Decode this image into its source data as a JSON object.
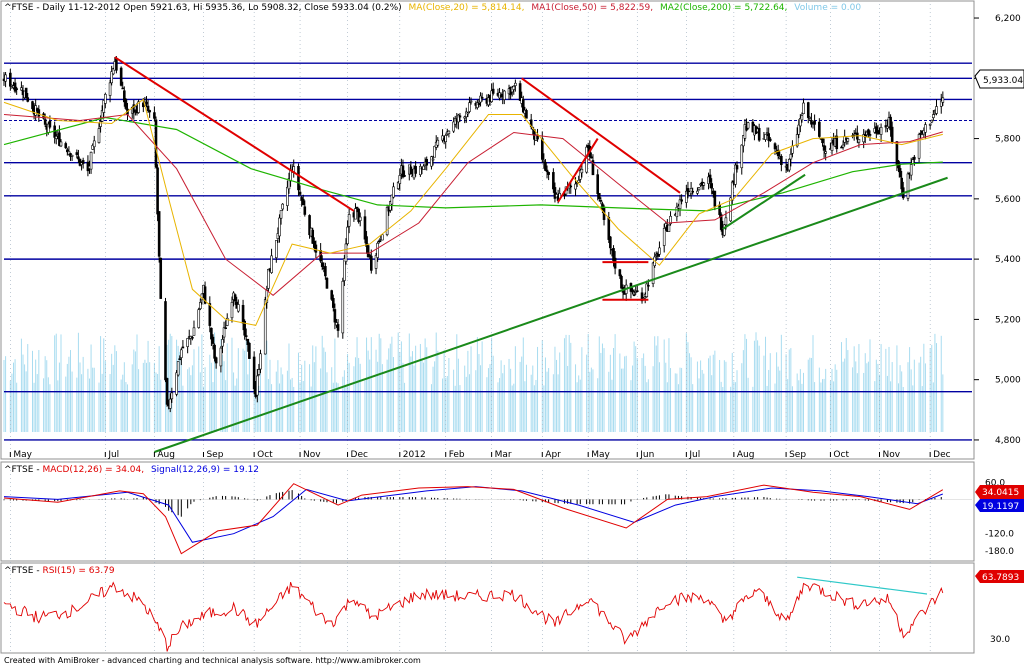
{
  "colors": {
    "price": "#000000",
    "ma20": "#E8B400",
    "ma50": "#C81E32",
    "ma200": "#1EB400",
    "volume": "#A8DCF0",
    "hline": "#0000A0",
    "trend_red": "#E00000",
    "trend_green": "#1A8A1A",
    "macd": "#E00000",
    "signal": "#0000E0",
    "rsi": "#E00000",
    "rsi_trend": "#2EC8C8"
  },
  "price_header": {
    "prefix": "^FTSE - Daily 11-12-2012 Open 5921.63, Hi 5935.36, Lo 5908.32, Close 5933.04 (0.2%)",
    "ma20": "MA(Close,20) = 5,814.14,",
    "ma50": "MA1(Close,50) = 5,822.59,",
    "ma200": "MA2(Close,200) = 5,722.64,",
    "volume": "Volume = 0.00"
  },
  "macd_header": {
    "prefix": "^FTSE - ",
    "macd": "MACD(12,26) = 34.04,",
    "signal": "Signal(12,26,9) = 19.12"
  },
  "rsi_header": {
    "prefix": "^FTSE - ",
    "rsi": "RSI(15) = 63.79"
  },
  "footer": "Created with AmiBroker - advanced charting and technical analysis software. http://www.amibroker.com",
  "last_price_label": "5,933.04",
  "macd_label": "34.0415",
  "signal_label": "19.1197",
  "rsi_label": "63.7893",
  "chart_data": [
    {
      "type": "candlestick",
      "title": "^FTSE - Daily 11-12-2012",
      "ylim": [
        4760,
        6220
      ],
      "y_ticks": [
        "6,200",
        "6,000",
        "5,800",
        "5,600",
        "5,400",
        "5,200",
        "5,000",
        "4,800"
      ],
      "y_tick_values": [
        6200,
        6000,
        5800,
        5600,
        5400,
        5200,
        5000,
        4800
      ],
      "x_ticks": [
        "May",
        "Jul",
        "Aug",
        "Sep",
        "Oct",
        "Nov",
        "Dec",
        "2012",
        "Feb",
        "Mar",
        "Apr",
        "May",
        "Jun",
        "Jul",
        "Aug",
        "Sep",
        "Oct",
        "Nov",
        "Dec"
      ],
      "x_tick_dates": [
        "2011-05-02",
        "2011-07-01",
        "2011-08-01",
        "2011-09-01",
        "2011-10-03",
        "2011-11-01",
        "2011-12-01",
        "2012-01-03",
        "2012-02-01",
        "2012-03-01",
        "2012-04-02",
        "2012-05-01",
        "2012-06-01",
        "2012-07-02",
        "2012-08-01",
        "2012-09-03",
        "2012-10-01",
        "2012-11-01",
        "2012-12-03"
      ],
      "close_path": [
        [
          "2011-04-28",
          6000
        ],
        [
          "2011-05-10",
          5960
        ],
        [
          "2011-05-24",
          5840
        ],
        [
          "2011-06-07",
          5770
        ],
        [
          "2011-06-20",
          5690
        ],
        [
          "2011-07-01",
          5940
        ],
        [
          "2011-07-07",
          6060
        ],
        [
          "2011-07-15",
          5880
        ],
        [
          "2011-07-25",
          5920
        ],
        [
          "2011-08-01",
          5850
        ],
        [
          "2011-08-05",
          5250
        ],
        [
          "2011-08-09",
          4900
        ],
        [
          "2011-08-18",
          5100
        ],
        [
          "2011-08-25",
          5150
        ],
        [
          "2011-09-01",
          5300
        ],
        [
          "2011-09-09",
          5040
        ],
        [
          "2011-09-20",
          5300
        ],
        [
          "2011-09-30",
          5080
        ],
        [
          "2011-10-04",
          4950
        ],
        [
          "2011-10-12",
          5350
        ],
        [
          "2011-10-27",
          5710
        ],
        [
          "2011-11-07",
          5500
        ],
        [
          "2011-11-18",
          5320
        ],
        [
          "2011-11-25",
          5160
        ],
        [
          "2011-12-02",
          5550
        ],
        [
          "2011-12-07",
          5560
        ],
        [
          "2011-12-16",
          5380
        ],
        [
          "2012-01-03",
          5690
        ],
        [
          "2012-01-18",
          5700
        ],
        [
          "2012-02-01",
          5820
        ],
        [
          "2012-02-15",
          5900
        ],
        [
          "2012-03-01",
          5940
        ],
        [
          "2012-03-16",
          5970
        ],
        [
          "2012-03-30",
          5780
        ],
        [
          "2012-04-10",
          5600
        ],
        [
          "2012-04-23",
          5650
        ],
        [
          "2012-05-01",
          5770
        ],
        [
          "2012-05-14",
          5450
        ],
        [
          "2012-05-23",
          5300
        ],
        [
          "2012-06-05",
          5280
        ],
        [
          "2012-06-19",
          5500
        ],
        [
          "2012-07-02",
          5630
        ],
        [
          "2012-07-16",
          5660
        ],
        [
          "2012-07-25",
          5500
        ],
        [
          "2012-08-08",
          5840
        ],
        [
          "2012-08-22",
          5800
        ],
        [
          "2012-09-04",
          5700
        ],
        [
          "2012-09-14",
          5900
        ],
        [
          "2012-09-28",
          5770
        ],
        [
          "2012-10-12",
          5800
        ],
        [
          "2012-10-26",
          5820
        ],
        [
          "2012-11-07",
          5850
        ],
        [
          "2012-11-16",
          5620
        ],
        [
          "2012-11-26",
          5800
        ],
        [
          "2012-12-11",
          5933
        ]
      ],
      "ma20": [
        [
          "2011-04-28",
          5920
        ],
        [
          "2011-06-01",
          5860
        ],
        [
          "2011-07-05",
          5850
        ],
        [
          "2011-07-25",
          5930
        ],
        [
          "2011-08-10",
          5600
        ],
        [
          "2011-08-25",
          5300
        ],
        [
          "2011-09-15",
          5200
        ],
        [
          "2011-10-04",
          5180
        ],
        [
          "2011-10-27",
          5450
        ],
        [
          "2011-11-20",
          5420
        ],
        [
          "2011-12-15",
          5450
        ],
        [
          "2012-01-10",
          5560
        ],
        [
          "2012-02-01",
          5700
        ],
        [
          "2012-02-28",
          5880
        ],
        [
          "2012-03-20",
          5880
        ],
        [
          "2012-04-20",
          5680
        ],
        [
          "2012-05-20",
          5500
        ],
        [
          "2012-06-15",
          5380
        ],
        [
          "2012-07-10",
          5550
        ],
        [
          "2012-08-01",
          5600
        ],
        [
          "2012-08-25",
          5750
        ],
        [
          "2012-09-20",
          5800
        ],
        [
          "2012-10-20",
          5810
        ],
        [
          "2012-11-15",
          5780
        ],
        [
          "2012-12-11",
          5814
        ]
      ],
      "ma50": [
        [
          "2011-04-28",
          5880
        ],
        [
          "2011-06-15",
          5860
        ],
        [
          "2011-07-15",
          5880
        ],
        [
          "2011-08-15",
          5700
        ],
        [
          "2011-09-15",
          5400
        ],
        [
          "2011-10-15",
          5280
        ],
        [
          "2011-11-15",
          5420
        ],
        [
          "2011-12-15",
          5420
        ],
        [
          "2012-01-15",
          5520
        ],
        [
          "2012-02-15",
          5720
        ],
        [
          "2012-03-15",
          5820
        ],
        [
          "2012-04-15",
          5800
        ],
        [
          "2012-05-20",
          5650
        ],
        [
          "2012-06-20",
          5520
        ],
        [
          "2012-07-20",
          5530
        ],
        [
          "2012-08-20",
          5620
        ],
        [
          "2012-09-20",
          5720
        ],
        [
          "2012-10-20",
          5780
        ],
        [
          "2012-11-20",
          5790
        ],
        [
          "2012-12-11",
          5822
        ]
      ],
      "ma200": [
        [
          "2011-04-28",
          5780
        ],
        [
          "2011-07-01",
          5870
        ],
        [
          "2011-08-15",
          5830
        ],
        [
          "2011-10-01",
          5700
        ],
        [
          "2011-11-15",
          5630
        ],
        [
          "2011-12-20",
          5580
        ],
        [
          "2012-02-01",
          5570
        ],
        [
          "2012-04-01",
          5580
        ],
        [
          "2012-05-20",
          5570
        ],
        [
          "2012-07-15",
          5560
        ],
        [
          "2012-09-01",
          5620
        ],
        [
          "2012-10-15",
          5690
        ],
        [
          "2012-11-15",
          5715
        ],
        [
          "2012-12-11",
          5722
        ]
      ],
      "horizontal_levels": [
        6050,
        6000,
        5930,
        5860,
        5720,
        5610,
        5400,
        4960,
        4800
      ],
      "trend_lines": [
        {
          "color": "trend_red",
          "points": [
            [
              "2011-07-07",
              6070
            ],
            [
              "2011-12-05",
              5560
            ]
          ]
        },
        {
          "color": "trend_red",
          "points": [
            [
              "2012-03-20",
              6000
            ],
            [
              "2012-06-28",
              5620
            ]
          ]
        },
        {
          "color": "trend_red",
          "points": [
            [
              "2012-04-12",
              5590
            ],
            [
              "2012-05-07",
              5800
            ]
          ]
        },
        {
          "color": "trend_red",
          "points": [
            [
              "2012-05-10",
              5390
            ],
            [
              "2012-06-08",
              5390
            ]
          ]
        },
        {
          "color": "trend_red",
          "points": [
            [
              "2012-05-10",
              5265
            ],
            [
              "2012-06-08",
              5265
            ]
          ]
        },
        {
          "color": "trend_green",
          "points": [
            [
              "2011-08-01",
              4760
            ],
            [
              "2012-12-14",
              5670
            ]
          ]
        },
        {
          "color": "trend_green",
          "points": [
            [
              "2012-07-25",
              5500
            ],
            [
              "2012-09-15",
              5680
            ]
          ]
        }
      ]
    },
    {
      "type": "line",
      "title": "MACD(12,26)",
      "ylim": [
        -205,
        75
      ],
      "y_ticks": [
        "60.0",
        "-120.0",
        "-180.0"
      ],
      "y_tick_values": [
        60,
        -120,
        -180
      ],
      "series": [
        {
          "name": "MACD(12,26)",
          "values": [
            [
              "2011-04-28",
              5
            ],
            [
              "2011-06-01",
              -10
            ],
            [
              "2011-07-10",
              30
            ],
            [
              "2011-07-25",
              20
            ],
            [
              "2011-08-08",
              -60
            ],
            [
              "2011-08-18",
              -190
            ],
            [
              "2011-09-10",
              -110
            ],
            [
              "2011-10-05",
              -90
            ],
            [
              "2011-10-28",
              55
            ],
            [
              "2011-11-25",
              -20
            ],
            [
              "2011-12-10",
              15
            ],
            [
              "2012-01-15",
              40
            ],
            [
              "2012-02-15",
              45
            ],
            [
              "2012-03-15",
              35
            ],
            [
              "2012-04-15",
              -30
            ],
            [
              "2012-05-25",
              -100
            ],
            [
              "2012-06-20",
              0
            ],
            [
              "2012-07-15",
              10
            ],
            [
              "2012-08-20",
              50
            ],
            [
              "2012-09-20",
              25
            ],
            [
              "2012-10-20",
              10
            ],
            [
              "2012-11-20",
              -35
            ],
            [
              "2012-12-11",
              34
            ]
          ]
        },
        {
          "name": "Signal(12,26,9)",
          "values": [
            [
              "2011-04-28",
              10
            ],
            [
              "2011-06-01",
              0
            ],
            [
              "2011-07-15",
              25
            ],
            [
              "2011-08-10",
              -20
            ],
            [
              "2011-08-25",
              -150
            ],
            [
              "2011-09-20",
              -120
            ],
            [
              "2011-10-15",
              -60
            ],
            [
              "2011-11-05",
              35
            ],
            [
              "2011-12-01",
              -5
            ],
            [
              "2012-01-20",
              30
            ],
            [
              "2012-02-20",
              45
            ],
            [
              "2012-03-20",
              30
            ],
            [
              "2012-04-25",
              -20
            ],
            [
              "2012-05-30",
              -80
            ],
            [
              "2012-06-25",
              -20
            ],
            [
              "2012-07-20",
              10
            ],
            [
              "2012-08-25",
              40
            ],
            [
              "2012-09-25",
              30
            ],
            [
              "2012-10-25",
              10
            ],
            [
              "2012-11-25",
              -15
            ],
            [
              "2012-12-11",
              19
            ]
          ]
        }
      ]
    },
    {
      "type": "line",
      "title": "RSI(15)",
      "ylim": [
        22,
        82
      ],
      "y_ticks": [
        "30.0"
      ],
      "y_tick_values": [
        30
      ],
      "series": [
        {
          "name": "RSI(15)",
          "values": [
            [
              "2011-04-28",
              55
            ],
            [
              "2011-05-20",
              45
            ],
            [
              "2011-06-10",
              50
            ],
            [
              "2011-07-07",
              68
            ],
            [
              "2011-07-25",
              55
            ],
            [
              "2011-08-05",
              35
            ],
            [
              "2011-08-09",
              25
            ],
            [
              "2011-08-20",
              40
            ],
            [
              "2011-09-05",
              48
            ],
            [
              "2011-09-20",
              52
            ],
            [
              "2011-10-04",
              40
            ],
            [
              "2011-10-27",
              68
            ],
            [
              "2011-11-20",
              40
            ],
            [
              "2011-12-05",
              60
            ],
            [
              "2011-12-16",
              45
            ],
            [
              "2012-01-15",
              62
            ],
            [
              "2012-02-15",
              60
            ],
            [
              "2012-03-15",
              62
            ],
            [
              "2012-04-10",
              40
            ],
            [
              "2012-05-01",
              60
            ],
            [
              "2012-05-25",
              28
            ],
            [
              "2012-06-20",
              58
            ],
            [
              "2012-07-15",
              60
            ],
            [
              "2012-07-25",
              42
            ],
            [
              "2012-08-15",
              65
            ],
            [
              "2012-09-04",
              42
            ],
            [
              "2012-09-15",
              70
            ],
            [
              "2012-10-15",
              55
            ],
            [
              "2012-11-07",
              58
            ],
            [
              "2012-11-16",
              34
            ],
            [
              "2012-12-11",
              64
            ]
          ]
        }
      ],
      "trend_lines": [
        {
          "color": "rsi_trend",
          "points": [
            [
              "2012-09-10",
              74
            ],
            [
              "2012-12-01",
              62
            ]
          ]
        }
      ]
    }
  ]
}
